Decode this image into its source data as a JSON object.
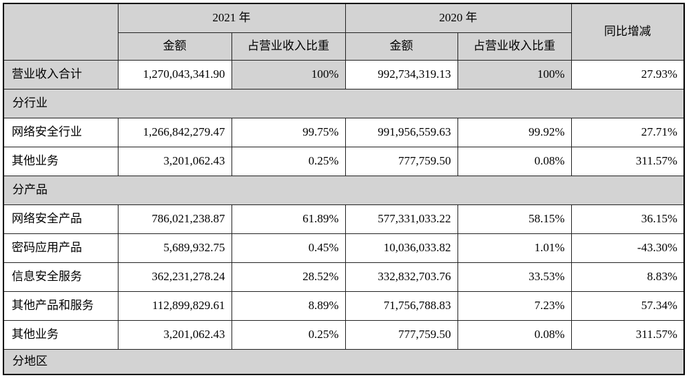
{
  "table": {
    "title_hint": "营业收入构成表",
    "colors": {
      "section_fill": "#d3d3d3",
      "border": "#000000"
    },
    "header": {
      "corner": "",
      "year2021": "2021 年",
      "year2020": "2020 年",
      "yoy": "同比增减",
      "amount": "金额",
      "ratio": "占营业收入比重"
    },
    "rows": [
      {
        "type": "total",
        "label": "营业收入合计",
        "a2021": "1,270,043,341.90",
        "r2021": "100%",
        "a2020": "992,734,319.13",
        "r2020": "100%",
        "yoy": "27.93%"
      },
      {
        "type": "section",
        "label": "分行业"
      },
      {
        "type": "data",
        "label": "网络安全行业",
        "a2021": "1,266,842,279.47",
        "r2021": "99.75%",
        "a2020": "991,956,559.63",
        "r2020": "99.92%",
        "yoy": "27.71%"
      },
      {
        "type": "data",
        "label": "其他业务",
        "a2021": "3,201,062.43",
        "r2021": "0.25%",
        "a2020": "777,759.50",
        "r2020": "0.08%",
        "yoy": "311.57%"
      },
      {
        "type": "section",
        "label": "分产品"
      },
      {
        "type": "data",
        "label": "网络安全产品",
        "a2021": "786,021,238.87",
        "r2021": "61.89%",
        "a2020": "577,331,033.22",
        "r2020": "58.15%",
        "yoy": "36.15%"
      },
      {
        "type": "data",
        "label": "密码应用产品",
        "a2021": "5,689,932.75",
        "r2021": "0.45%",
        "a2020": "10,036,033.82",
        "r2020": "1.01%",
        "yoy": "-43.30%"
      },
      {
        "type": "data",
        "label": "信息安全服务",
        "a2021": "362,231,278.24",
        "r2021": "28.52%",
        "a2020": "332,832,703.76",
        "r2020": "33.53%",
        "yoy": "8.83%"
      },
      {
        "type": "data",
        "label": "其他产品和服务",
        "a2021": "112,899,829.61",
        "r2021": "8.89%",
        "a2020": "71,756,788.83",
        "r2020": "7.23%",
        "yoy": "57.34%"
      },
      {
        "type": "data",
        "label": "其他业务",
        "a2021": "3,201,062.43",
        "r2021": "0.25%",
        "a2020": "777,759.50",
        "r2020": "0.08%",
        "yoy": "311.57%"
      },
      {
        "type": "section",
        "label": "分地区"
      }
    ]
  }
}
